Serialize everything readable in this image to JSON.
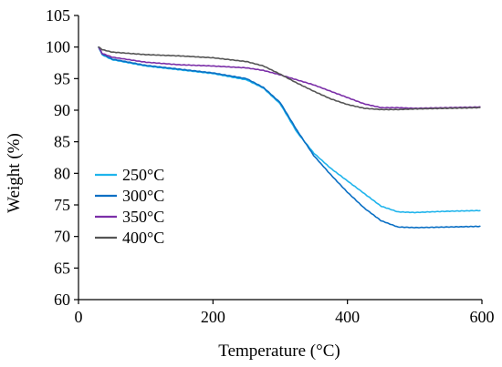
{
  "chart_data": {
    "type": "line",
    "title": "",
    "xlabel": "Temperature (°C)",
    "ylabel": "Weight (%)",
    "xlim": [
      0,
      600
    ],
    "ylim": [
      60,
      105
    ],
    "x_ticks": [
      0,
      200,
      400,
      600
    ],
    "y_ticks": [
      60,
      65,
      70,
      75,
      80,
      85,
      90,
      95,
      100,
      105
    ],
    "x_tick_labels": [
      "0",
      "200",
      "400",
      "600"
    ],
    "y_tick_labels": [
      "60",
      "65",
      "70",
      "75",
      "80",
      "85",
      "90",
      "95",
      "100",
      "105"
    ],
    "grid": false,
    "legend_position": "bottom-left",
    "series": [
      {
        "name": "250°C",
        "color": "#1fb4ec",
        "x": [
          30,
          35,
          50,
          100,
          150,
          200,
          250,
          275,
          300,
          325,
          350,
          375,
          400,
          425,
          450,
          475,
          500,
          550,
          597
        ],
        "y": [
          100,
          98.8,
          98.0,
          97.0,
          96.4,
          95.8,
          94.8,
          93.5,
          91.0,
          86.5,
          83.2,
          80.8,
          78.8,
          76.8,
          74.8,
          73.9,
          73.8,
          74.0,
          74.1
        ]
      },
      {
        "name": "300°C",
        "color": "#0a6fc4",
        "x": [
          30,
          35,
          50,
          100,
          150,
          200,
          250,
          275,
          300,
          325,
          350,
          375,
          400,
          425,
          450,
          475,
          500,
          550,
          597
        ],
        "y": [
          100,
          98.9,
          98.1,
          97.1,
          96.5,
          95.9,
          95.0,
          93.6,
          91.2,
          86.8,
          82.8,
          79.8,
          77.0,
          74.5,
          72.5,
          71.5,
          71.4,
          71.5,
          71.6
        ]
      },
      {
        "name": "350°C",
        "color": "#7b2fa8",
        "x": [
          30,
          35,
          50,
          100,
          150,
          200,
          250,
          275,
          300,
          325,
          350,
          375,
          400,
          425,
          450,
          475,
          500,
          550,
          597
        ],
        "y": [
          100,
          99.0,
          98.4,
          97.6,
          97.2,
          97.0,
          96.7,
          96.3,
          95.6,
          94.8,
          94.0,
          93.0,
          92.0,
          91.0,
          90.4,
          90.4,
          90.3,
          90.4,
          90.5
        ]
      },
      {
        "name": "400°C",
        "color": "#555555",
        "x": [
          30,
          35,
          50,
          100,
          150,
          200,
          250,
          275,
          300,
          325,
          350,
          375,
          400,
          425,
          450,
          475,
          500,
          550,
          597
        ],
        "y": [
          100,
          99.6,
          99.2,
          98.8,
          98.6,
          98.3,
          97.7,
          97.0,
          95.7,
          94.3,
          93.0,
          91.8,
          90.9,
          90.3,
          90.1,
          90.1,
          90.2,
          90.3,
          90.4
        ]
      }
    ]
  }
}
